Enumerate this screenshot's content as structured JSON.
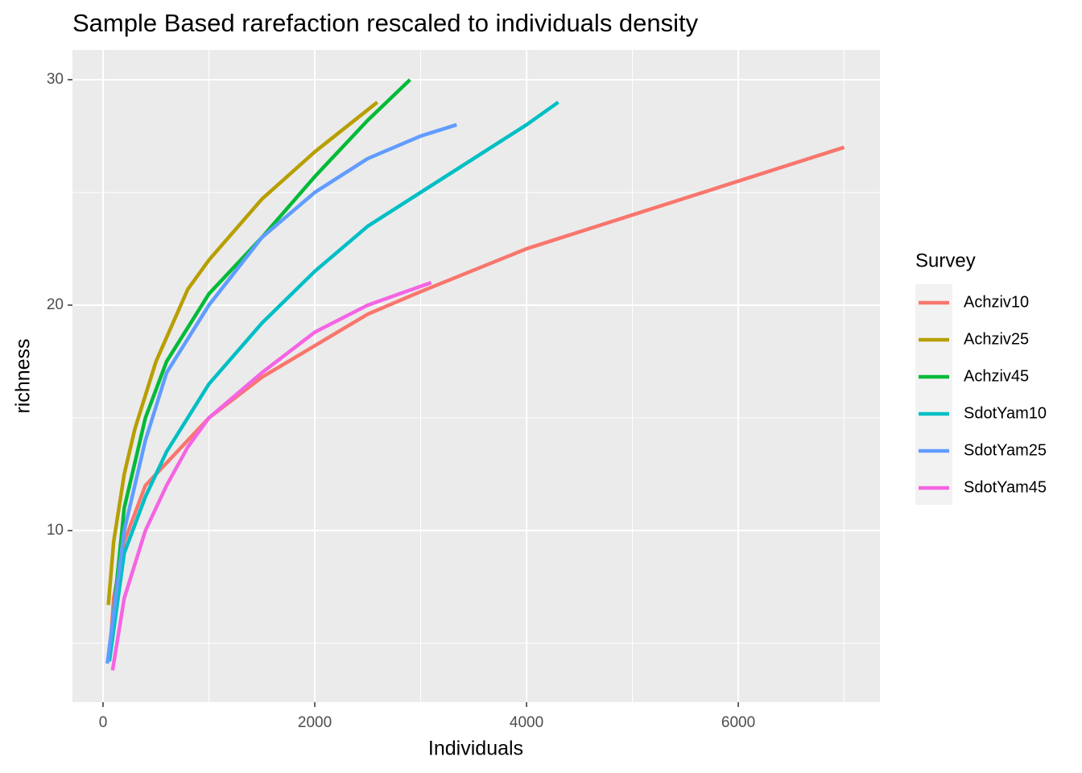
{
  "chart_data": {
    "type": "line",
    "title": "Sample Based rarefaction rescaled to individuals density",
    "x_label": "Individuals",
    "y_label": "richness",
    "legend_title": "Survey",
    "legend_position": "right",
    "grid": true,
    "xlim": [
      -289,
      7338
    ],
    "ylim": [
      2.39,
      31.32
    ],
    "xticks": [
      0,
      2000,
      4000,
      6000
    ],
    "yticks": [
      10,
      20,
      30
    ],
    "x_minor_grid": [
      1000,
      3000,
      5000,
      7000
    ],
    "y_minor_grid": [
      5,
      15,
      25
    ],
    "series": [
      {
        "name": "Achziv10",
        "color": "#F8766D",
        "x": [
          60,
          100,
          200,
          400,
          800,
          1000,
          1500,
          2000,
          2500,
          3000,
          4000,
          5000,
          6000,
          7000
        ],
        "values": [
          4.3,
          7,
          9.5,
          12,
          14,
          15,
          16.8,
          18.2,
          19.6,
          20.6,
          22.5,
          24,
          25.5,
          27
        ]
      },
      {
        "name": "Achziv25",
        "color": "#B79F00",
        "x": [
          50,
          100,
          200,
          300,
          500,
          800,
          1000,
          1500,
          2000,
          2590
        ],
        "values": [
          6.7,
          9.5,
          12.5,
          14.5,
          17.5,
          20.7,
          22,
          24.7,
          26.8,
          29
        ]
      },
      {
        "name": "Achziv45",
        "color": "#00BA38",
        "x": [
          60,
          200,
          400,
          600,
          1000,
          1500,
          2000,
          2500,
          2900
        ],
        "values": [
          4.5,
          11,
          15,
          17.5,
          20.5,
          23,
          25.7,
          28.2,
          30
        ]
      },
      {
        "name": "SdotYam10",
        "color": "#00BFC4",
        "x": [
          60,
          200,
          400,
          600,
          1000,
          1500,
          2000,
          2500,
          3000,
          3500,
          4000,
          4300
        ],
        "values": [
          4.2,
          9,
          11.5,
          13.5,
          16.5,
          19.2,
          21.5,
          23.5,
          25,
          26.5,
          28,
          29
        ]
      },
      {
        "name": "SdotYam25",
        "color": "#619CFF",
        "x": [
          40,
          200,
          400,
          600,
          1000,
          1500,
          2000,
          2500,
          3000,
          3340
        ],
        "values": [
          4.1,
          10,
          14,
          17,
          20,
          23,
          25,
          26.5,
          27.5,
          28
        ]
      },
      {
        "name": "SdotYam45",
        "color": "#F564E3",
        "x": [
          90,
          200,
          400,
          600,
          800,
          1000,
          1500,
          2000,
          2500,
          3100
        ],
        "values": [
          3.8,
          7,
          10,
          12,
          13.7,
          15,
          17,
          18.8,
          20,
          21
        ]
      }
    ]
  }
}
